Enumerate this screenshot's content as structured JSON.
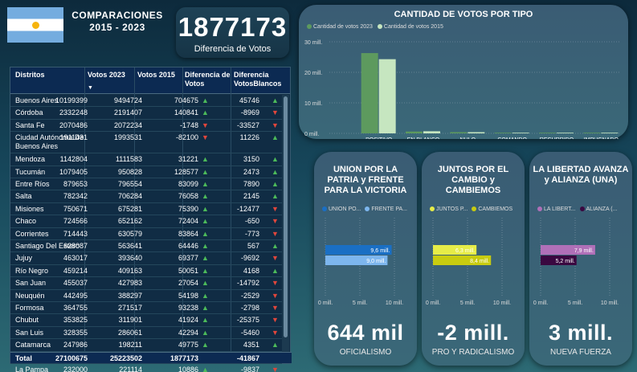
{
  "header": {
    "title_line1": "COMPARACIONES",
    "title_line2": "2015 - 2023"
  },
  "diff_card": {
    "value": "1877173",
    "label": "Diferencia de Votos"
  },
  "table": {
    "columns": [
      "Distritos",
      "Votos 2023",
      "Votos 2015",
      "Diferencia de Votos",
      "Diferencia VotosBlancos"
    ],
    "rows": [
      [
        "Buenos Aires",
        "10199399",
        "9494724",
        "704675",
        "up",
        "45746",
        "up"
      ],
      [
        "Córdoba",
        "2332248",
        "2191407",
        "140841",
        "up",
        "-8969",
        "down"
      ],
      [
        "Santa Fe",
        "2070486",
        "2072234",
        "-1748",
        "down",
        "-33527",
        "down"
      ],
      [
        "Ciudad Autónoma De Buenos Aires",
        "1911431",
        "1993531",
        "-82100",
        "down",
        "11226",
        "up"
      ],
      [
        "Mendoza",
        "1142804",
        "1111583",
        "31221",
        "up",
        "3150",
        "up"
      ],
      [
        "Tucumán",
        "1079405",
        "950828",
        "128577",
        "up",
        "2473",
        "up"
      ],
      [
        "Entre Ríos",
        "879653",
        "796554",
        "83099",
        "up",
        "7890",
        "up"
      ],
      [
        "Salta",
        "782342",
        "706284",
        "76058",
        "up",
        "2145",
        "up"
      ],
      [
        "Misiones",
        "750671",
        "675281",
        "75390",
        "up",
        "-12477",
        "down"
      ],
      [
        "Chaco",
        "724566",
        "652162",
        "72404",
        "up",
        "-650",
        "down"
      ],
      [
        "Corrientes",
        "714443",
        "630579",
        "83864",
        "up",
        "-773",
        "down"
      ],
      [
        "Santiago Del Estero",
        "628087",
        "563641",
        "64446",
        "up",
        "567",
        "up"
      ],
      [
        "Jujuy",
        "463017",
        "393640",
        "69377",
        "up",
        "-9692",
        "down"
      ],
      [
        "Río Negro",
        "459214",
        "409163",
        "50051",
        "up",
        "4168",
        "up"
      ],
      [
        "San Juan",
        "455037",
        "427983",
        "27054",
        "up",
        "-14792",
        "down"
      ],
      [
        "Neuquén",
        "442495",
        "388297",
        "54198",
        "up",
        "-2529",
        "down"
      ],
      [
        "Formosa",
        "364755",
        "271517",
        "93238",
        "up",
        "-2798",
        "down"
      ],
      [
        "Chubut",
        "353825",
        "311901",
        "41924",
        "up",
        "-25375",
        "down"
      ],
      [
        "San Luis",
        "328355",
        "286061",
        "42294",
        "up",
        "-5460",
        "down"
      ],
      [
        "Catamarca",
        "247986",
        "198211",
        "49775",
        "up",
        "4351",
        "up"
      ],
      [
        "La Rioja",
        "242363",
        "204539",
        "37824",
        "up",
        "-1284",
        "down"
      ],
      [
        "La Pampa",
        "232000",
        "221114",
        "10886",
        "up",
        "-9837",
        "down"
      ]
    ],
    "total": [
      "Total",
      "27100675",
      "25223502",
      "1877173",
      "-41867"
    ]
  },
  "vote_type_chart": {
    "title": "CANTIDAD DE VOTOS POR TIPO",
    "legend": [
      "Cantidad de votos 2023",
      "Cantidad de votos 2015"
    ],
    "colors": [
      "#5d9a5e",
      "#c6e6c0"
    ],
    "y_ticks": [
      "30 mill.",
      "20 mill.",
      "10 mill.",
      "0 mill."
    ],
    "chart_data": {
      "type": "bar",
      "categories": [
        "POSITIVO",
        "EN BLANCO",
        "NULO",
        "COMANDO",
        "RECURRIDO",
        "IMPUGNADO"
      ],
      "series": [
        {
          "name": "Cantidad de votos 2023",
          "values": [
            26.3,
            0.6,
            0.4,
            0.0,
            0.05,
            0.02
          ]
        },
        {
          "name": "Cantidad de votos 2015",
          "values": [
            24.3,
            0.7,
            0.4,
            0.0,
            0.05,
            0.02
          ]
        }
      ],
      "ylim": [
        0,
        30
      ]
    }
  },
  "party_cards": [
    {
      "title": "UNION POR LA PATRIA y FRENTE PARA LA VICTORIA",
      "legend": [
        "UNION PO...",
        "FRENTE PA..."
      ],
      "colors": [
        "#1a6fc4",
        "#7db6ee"
      ],
      "bar_labels": [
        "9,6 mill.",
        "9,0 mill."
      ],
      "values": [
        9.6,
        9.0
      ],
      "x_ticks": [
        "0 mill.",
        "5 mill.",
        "10 mill."
      ],
      "kpi": "644 mil",
      "kpi_label": "OFICIALISMO"
    },
    {
      "title": "JUNTOS POR EL CAMBIO y CAMBIEMOS",
      "legend": [
        "JUNTOS P...",
        "CAMBIEMOS"
      ],
      "colors": [
        "#e6ec48",
        "#c8cc10"
      ],
      "bar_labels": [
        "6,3 mill.",
        "8,4 mill."
      ],
      "values": [
        6.3,
        8.4
      ],
      "x_ticks": [
        "0 mill.",
        "5 mill.",
        "10 mill."
      ],
      "kpi": "-2 mill.",
      "kpi_label": "PRO Y RADICALISMO"
    },
    {
      "title": "LA LIBERTAD AVANZA y ALIANZA (UNA)",
      "legend": [
        "LA LIBERT...",
        "ALIANZA (..."
      ],
      "colors": [
        "#b070b8",
        "#3a0840"
      ],
      "bar_labels": [
        "7,9 mill.",
        "5,2 mill."
      ],
      "values": [
        7.9,
        5.2
      ],
      "x_ticks": [
        "0 mill.",
        "5 mill.",
        "10 mill."
      ],
      "kpi": "3 mill.",
      "kpi_label": "NUEVA FUERZA"
    }
  ]
}
